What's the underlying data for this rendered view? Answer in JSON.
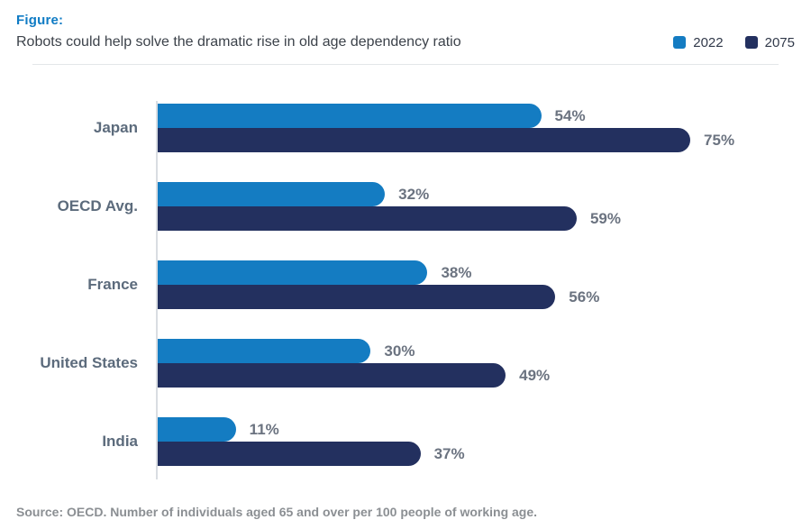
{
  "header": {
    "kicker": "Figure:",
    "title": "Robots could help solve the dramatic rise in old age dependency ratio"
  },
  "chart_data": {
    "type": "bar",
    "orientation": "horizontal",
    "title": "Robots could help solve the dramatic rise in old age dependency ratio",
    "categories": [
      "Japan",
      "OECD Avg.",
      "France",
      "United States",
      "India"
    ],
    "series": [
      {
        "name": "2022",
        "color": "#147cc2",
        "values": [
          54,
          32,
          38,
          30,
          11
        ]
      },
      {
        "name": "2075",
        "color": "#23305f",
        "values": [
          75,
          59,
          56,
          49,
          37
        ]
      }
    ],
    "value_suffix": "%",
    "xlim": [
      0,
      92
    ],
    "grid": false,
    "legend_position": "top-right",
    "data_labels": true
  },
  "footer": {
    "source": "Source: OECD. Number of individuals aged 65 and over per 100 people of working age."
  },
  "colors": {
    "kicker_blue": "#0f7bc4",
    "series_2022": "#147cc2",
    "series_2075": "#23305f",
    "category_label": "#5c6b7c",
    "value_label": "#6b7380",
    "source_gray": "#8b8f93",
    "axis_gray": "#d9dde2",
    "divider_gray": "#e3e6e9"
  }
}
